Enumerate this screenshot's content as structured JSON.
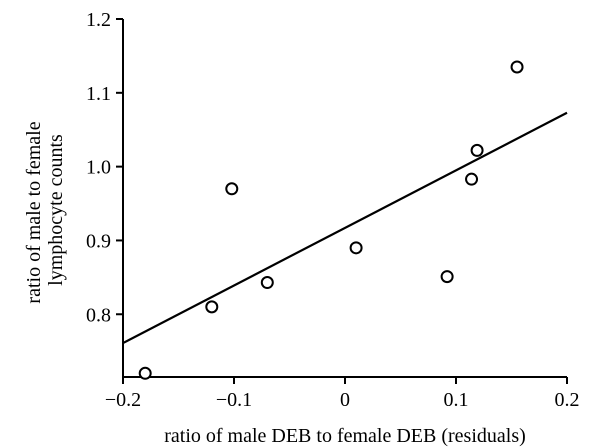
{
  "chart_data": {
    "type": "scatter",
    "xlabel": "ratio of male DEB to female DEB (residuals)",
    "ylabel_lines": [
      "ratio of male to female",
      "lymphocyte counts"
    ],
    "xlim": [
      -0.2,
      0.2
    ],
    "ylim": [
      0.715,
      1.2
    ],
    "x_ticks": [
      -0.2,
      -0.1,
      0,
      0.1,
      0.2
    ],
    "x_tick_labels": [
      "−0.2",
      "−0.1",
      "0",
      "0.1",
      "0.2"
    ],
    "y_ticks": [
      0.8,
      0.9,
      1.0,
      1.1,
      1.2
    ],
    "y_tick_labels": [
      "0.8",
      "0.9",
      "1.0",
      "1.1",
      "1.2"
    ],
    "grid": false,
    "points": [
      {
        "x": -0.18,
        "y": 0.72
      },
      {
        "x": -0.12,
        "y": 0.81
      },
      {
        "x": -0.102,
        "y": 0.97
      },
      {
        "x": -0.07,
        "y": 0.843
      },
      {
        "x": 0.01,
        "y": 0.89
      },
      {
        "x": 0.092,
        "y": 0.851
      },
      {
        "x": 0.114,
        "y": 0.983
      },
      {
        "x": 0.119,
        "y": 1.022
      },
      {
        "x": 0.155,
        "y": 1.135
      }
    ],
    "fit_line": {
      "x": [
        -0.2,
        0.2
      ],
      "y": [
        0.761,
        1.073
      ]
    }
  }
}
